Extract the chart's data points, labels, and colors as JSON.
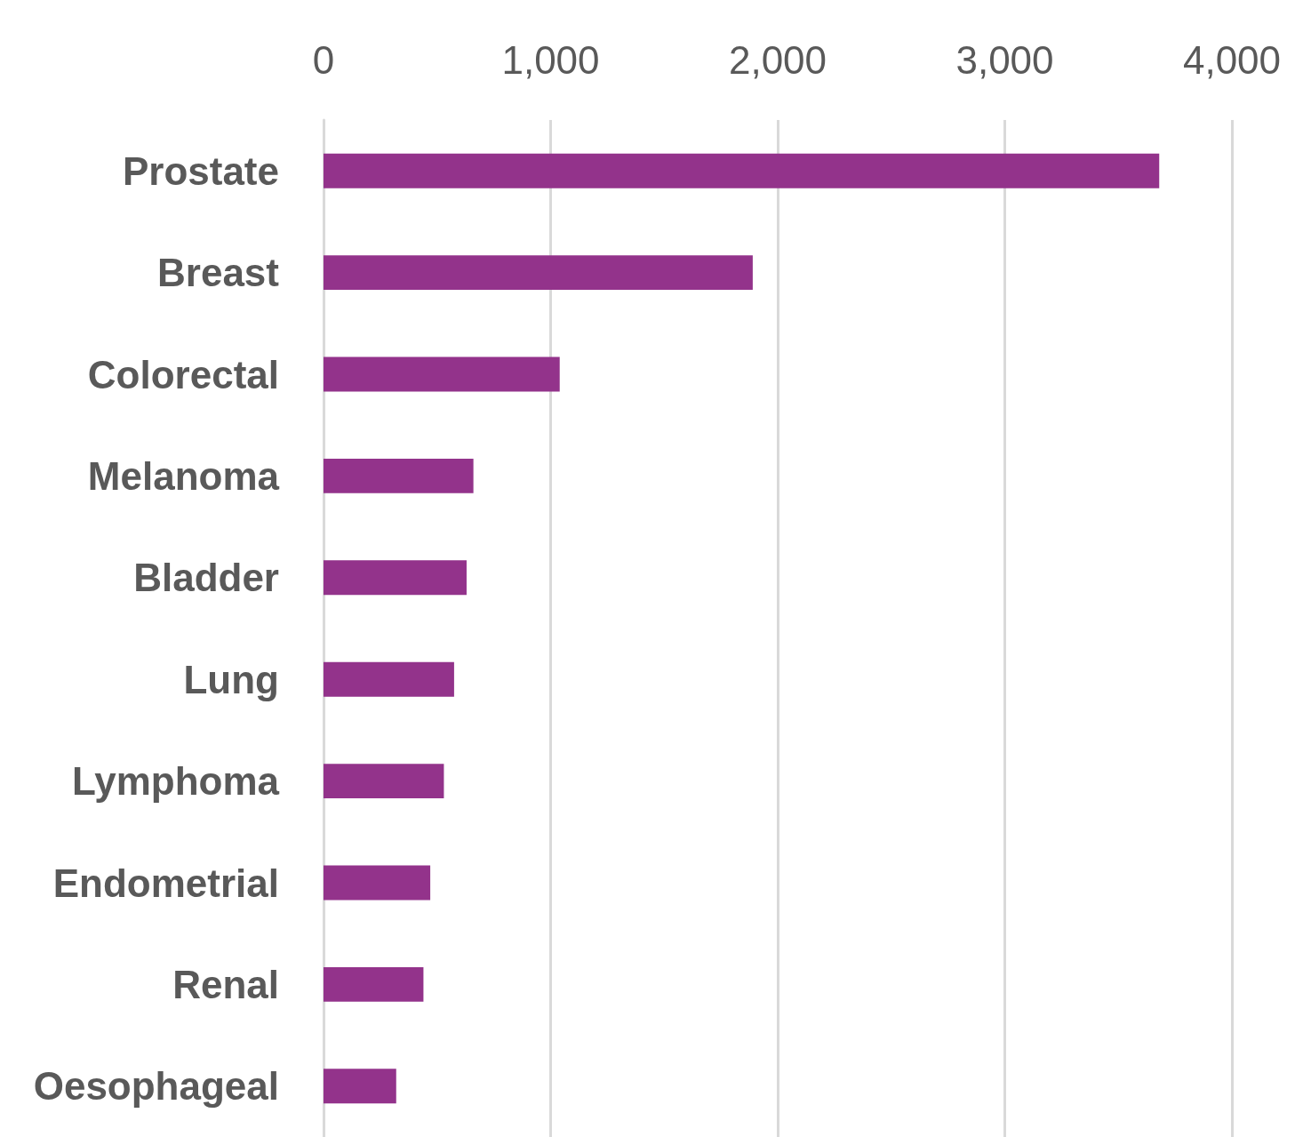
{
  "chart_data": {
    "type": "bar",
    "orientation": "horizontal",
    "categories": [
      "Prostate",
      "Breast",
      "Colorectal",
      "Melanoma",
      "Bladder",
      "Lung",
      "Lymphoma",
      "Endometrial",
      "Renal",
      "Oesophageal"
    ],
    "values": [
      3680,
      1890,
      1040,
      660,
      630,
      575,
      530,
      470,
      440,
      320
    ],
    "color": "#93338b",
    "xlim": [
      0,
      4000
    ],
    "xticks": [
      {
        "value": 0,
        "label": "0"
      },
      {
        "value": 1000,
        "label": "1,000"
      },
      {
        "value": 2000,
        "label": "2,000"
      },
      {
        "value": 3000,
        "label": "3,000"
      },
      {
        "value": 4000,
        "label": "4,000"
      }
    ],
    "grid": "x"
  }
}
